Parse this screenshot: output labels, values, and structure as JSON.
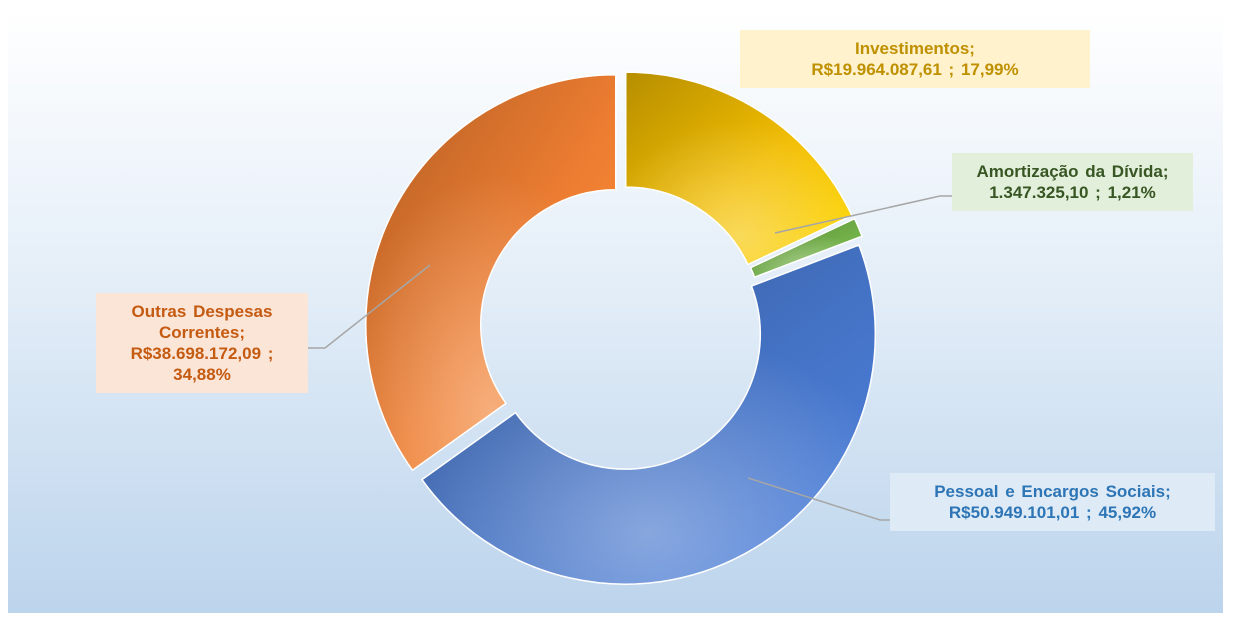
{
  "chart_data": {
    "type": "pie",
    "donut": true,
    "categories": [
      "Investimentos;",
      "Amortização da Dívida;",
      "Pessoal e Encargos Sociais;",
      "Outras Despesas Correntes;"
    ],
    "values": [
      17.99,
      1.21,
      45.92,
      34.88
    ],
    "value_labels": [
      "R$19.964.087,61 ; 17,99%",
      "1.347.325,10 ; 1,21%",
      "R$50.949.101,01 ; 45,92%",
      "R$38.698.172,09 ; 34,88%"
    ],
    "colors": [
      "#f2bd00",
      "#70ad47",
      "#4472c4",
      "#ed7d31"
    ]
  }
}
